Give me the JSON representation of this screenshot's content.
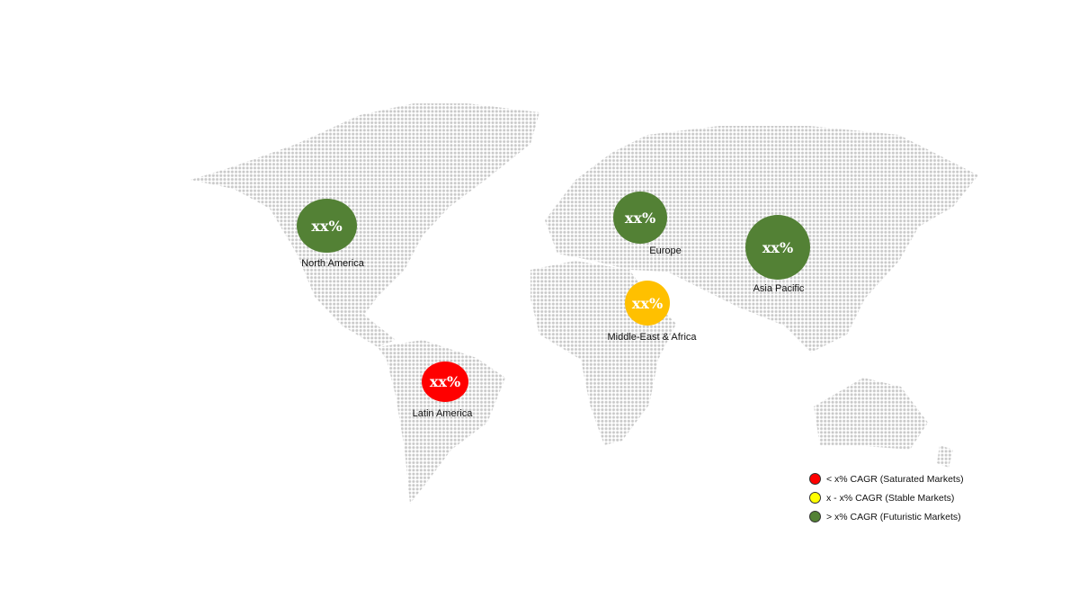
{
  "regions": [
    {
      "name": "North America",
      "value": "xx%",
      "color": "#538135"
    },
    {
      "name": "Europe",
      "value": "xx%",
      "color": "#538135"
    },
    {
      "name": "Asia Pacific",
      "value": "xx%",
      "color": "#538135"
    },
    {
      "name": "Middle-East & Africa",
      "value": "xx%",
      "color": "#ffc000"
    },
    {
      "name": "Latin America",
      "value": "xx%",
      "color": "#ff0000"
    }
  ],
  "legend": [
    {
      "label": "< x% CAGR (Saturated Markets)",
      "color": "#ff0000"
    },
    {
      "label": "x - x% CAGR (Stable Markets)",
      "color": "#ffff00"
    },
    {
      "label": "> x% CAGR (Futuristic Markets)",
      "color": "#538135"
    }
  ]
}
